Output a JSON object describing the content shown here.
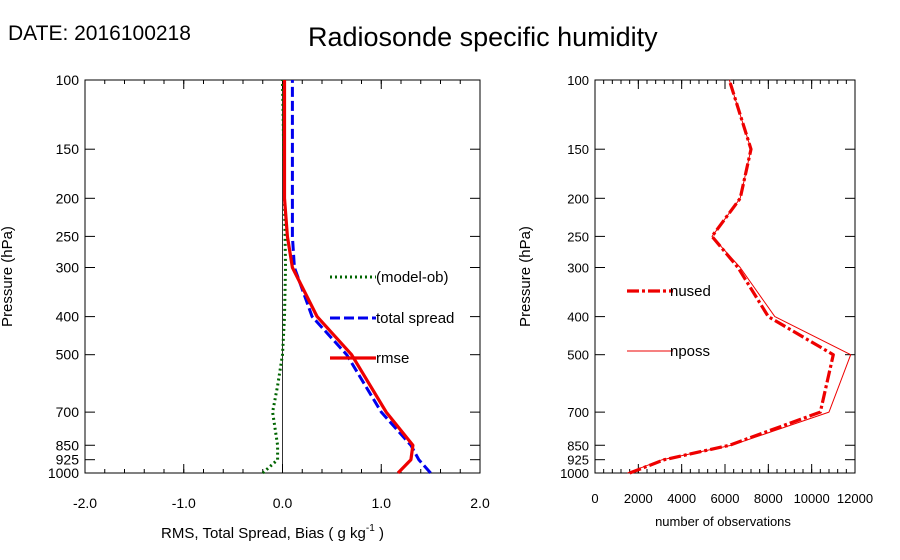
{
  "header": {
    "date_label": "DATE: 2016100218",
    "title": "Radiosonde specific humidity"
  },
  "chart_data": [
    {
      "type": "line",
      "ylabel": "Pressure (hPa)",
      "xlabel_main": "RMS, Total Spread, Bias ( g kg",
      "xlabel_sup": "-1",
      "xlabel_end": " )",
      "xlim": [
        -2.0,
        2.0
      ],
      "ylim": [
        1000,
        100
      ],
      "y_scale": "log",
      "x_ticks": [
        "-2.0",
        "-1.0",
        "0.0",
        "1.0",
        "2.0"
      ],
      "y_ticks": [
        100,
        150,
        200,
        250,
        300,
        400,
        500,
        700,
        850,
        925,
        1000
      ],
      "legend": [
        "(model-ob)",
        "total spread",
        "rmse"
      ],
      "legend_placement": "center-right",
      "series": [
        {
          "name": "(model-ob)",
          "color": "#006400",
          "style": "dotted",
          "points": [
            [
              -0.2,
              1000
            ],
            [
              -0.05,
              925
            ],
            [
              -0.05,
              850
            ],
            [
              -0.1,
              700
            ],
            [
              -0.05,
              600
            ],
            [
              0.0,
              500
            ],
            [
              0.02,
              400
            ],
            [
              0.03,
              300
            ],
            [
              0.02,
              200
            ],
            [
              0.0,
              100
            ]
          ]
        },
        {
          "name": "total spread",
          "color": "#0000ee",
          "style": "dashed",
          "points": [
            [
              1.5,
              1000
            ],
            [
              1.38,
              925
            ],
            [
              1.3,
              850
            ],
            [
              1.0,
              700
            ],
            [
              0.65,
              500
            ],
            [
              0.3,
              400
            ],
            [
              0.12,
              300
            ],
            [
              0.1,
              250
            ],
            [
              0.1,
              200
            ],
            [
              0.1,
              150
            ],
            [
              0.1,
              100
            ]
          ]
        },
        {
          "name": "rmse",
          "color": "#ee0000",
          "style": "solid",
          "points": [
            [
              1.17,
              1000
            ],
            [
              1.3,
              925
            ],
            [
              1.32,
              850
            ],
            [
              1.05,
              700
            ],
            [
              0.7,
              500
            ],
            [
              0.35,
              400
            ],
            [
              0.1,
              300
            ],
            [
              0.05,
              250
            ],
            [
              0.02,
              200
            ],
            [
              0.02,
              150
            ],
            [
              0.02,
              100
            ]
          ]
        }
      ],
      "zero_line": {
        "x": 0.0,
        "color": "#000000"
      }
    },
    {
      "type": "line",
      "ylabel": "Pressure (hPa)",
      "xlabel": "number of observations",
      "xlim": [
        0,
        12000
      ],
      "ylim": [
        1000,
        100
      ],
      "y_scale": "log",
      "x_ticks": [
        "0",
        "2000",
        "4000",
        "6000",
        "8000",
        "10000",
        "12000"
      ],
      "y_ticks": [
        100,
        150,
        200,
        250,
        300,
        400,
        500,
        700,
        850,
        925,
        1000
      ],
      "legend": [
        "nused",
        "nposs"
      ],
      "legend_placement": "center-left",
      "series": [
        {
          "name": "nused",
          "color": "#ee0000",
          "style": "thick-dashed",
          "points": [
            [
              1600,
              1000
            ],
            [
              3200,
              925
            ],
            [
              6200,
              850
            ],
            [
              10400,
              700
            ],
            [
              11000,
              500
            ],
            [
              8000,
              400
            ],
            [
              6600,
              300
            ],
            [
              5400,
              250
            ],
            [
              6700,
              200
            ],
            [
              7200,
              150
            ],
            [
              6200,
              100
            ]
          ]
        },
        {
          "name": "nposs",
          "color": "#ee0000",
          "style": "thin",
          "points": [
            [
              1500,
              1000
            ],
            [
              3100,
              925
            ],
            [
              6300,
              850
            ],
            [
              10800,
              700
            ],
            [
              11800,
              500
            ],
            [
              8300,
              400
            ],
            [
              6700,
              300
            ],
            [
              5400,
              250
            ],
            [
              6700,
              200
            ],
            [
              7200,
              150
            ],
            [
              6200,
              100
            ]
          ]
        }
      ]
    }
  ]
}
